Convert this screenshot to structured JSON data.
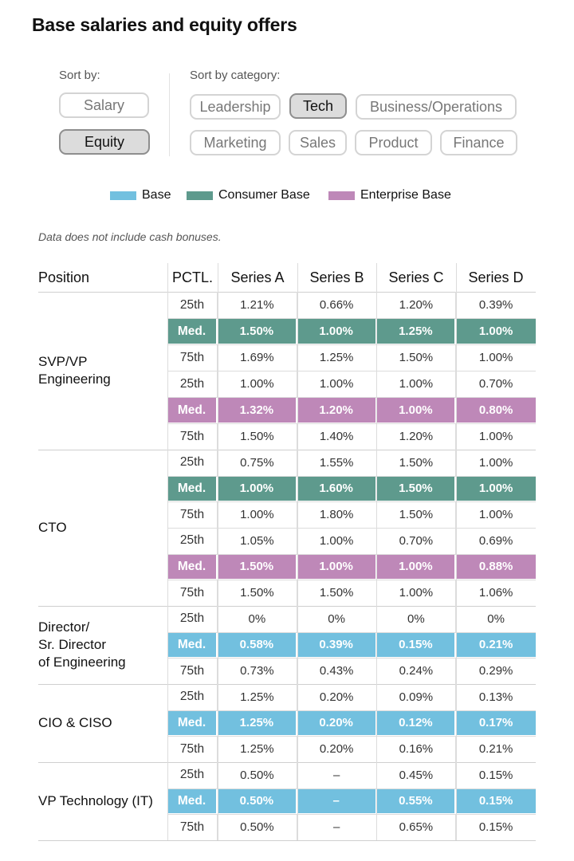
{
  "title": "Base salaries and equity offers",
  "sort_by": {
    "label": "Sort by:",
    "options": [
      {
        "label": "Salary",
        "active": false
      },
      {
        "label": "Equity",
        "active": true
      }
    ]
  },
  "sort_by_category": {
    "label": "Sort by category:",
    "options": [
      {
        "label": "Leadership",
        "active": false
      },
      {
        "label": "Tech",
        "active": true
      },
      {
        "label": "Business/Operations",
        "active": false
      },
      {
        "label": "Marketing",
        "active": false
      },
      {
        "label": "Sales",
        "active": false
      },
      {
        "label": "Product",
        "active": false
      },
      {
        "label": "Finance",
        "active": false
      }
    ]
  },
  "colors": {
    "base": "#72c0df",
    "consumer": "#5e9a8d",
    "enterprise": "#be88b8"
  },
  "note": "Data does not include cash bonuses.",
  "chart_data": {
    "type": "table",
    "legend": [
      {
        "name": "Base",
        "color": "#72c0df"
      },
      {
        "name": "Consumer Base",
        "color": "#5e9a8d"
      },
      {
        "name": "Enterprise Base",
        "color": "#be88b8"
      }
    ],
    "columns": [
      "Position",
      "PCTL.",
      "Series A",
      "Series B",
      "Series C",
      "Series D"
    ],
    "groups": [
      {
        "position": "SVP/VP\nEngineering",
        "rows": [
          {
            "pctl": "25th",
            "values": [
              "1.21%",
              "0.66%",
              "1.20%",
              "0.39%"
            ],
            "highlight": null
          },
          {
            "pctl": "Med.",
            "values": [
              "1.50%",
              "1.00%",
              "1.25%",
              "1.00%"
            ],
            "highlight": "consumer"
          },
          {
            "pctl": "75th",
            "values": [
              "1.69%",
              "1.25%",
              "1.50%",
              "1.00%"
            ],
            "highlight": null
          },
          {
            "pctl": "25th",
            "values": [
              "1.00%",
              "1.00%",
              "1.00%",
              "0.70%"
            ],
            "highlight": null
          },
          {
            "pctl": "Med.",
            "values": [
              "1.32%",
              "1.20%",
              "1.00%",
              "0.80%"
            ],
            "highlight": "enterprise"
          },
          {
            "pctl": "75th",
            "values": [
              "1.50%",
              "1.40%",
              "1.20%",
              "1.00%"
            ],
            "highlight": null
          }
        ]
      },
      {
        "position": "CTO",
        "rows": [
          {
            "pctl": "25th",
            "values": [
              "0.75%",
              "1.55%",
              "1.50%",
              "1.00%"
            ],
            "highlight": null
          },
          {
            "pctl": "Med.",
            "values": [
              "1.00%",
              "1.60%",
              "1.50%",
              "1.00%"
            ],
            "highlight": "consumer"
          },
          {
            "pctl": "75th",
            "values": [
              "1.00%",
              "1.80%",
              "1.50%",
              "1.00%"
            ],
            "highlight": null
          },
          {
            "pctl": "25th",
            "values": [
              "1.05%",
              "1.00%",
              "0.70%",
              "0.69%"
            ],
            "highlight": null
          },
          {
            "pctl": "Med.",
            "values": [
              "1.50%",
              "1.00%",
              "1.00%",
              "0.88%"
            ],
            "highlight": "enterprise"
          },
          {
            "pctl": "75th",
            "values": [
              "1.50%",
              "1.50%",
              "1.00%",
              "1.06%"
            ],
            "highlight": null
          }
        ]
      },
      {
        "position": "Director/\nSr. Director\nof Engineering",
        "rows": [
          {
            "pctl": "25th",
            "values": [
              "0%",
              "0%",
              "0%",
              "0%"
            ],
            "highlight": null
          },
          {
            "pctl": "Med.",
            "values": [
              "0.58%",
              "0.39%",
              "0.15%",
              "0.21%"
            ],
            "highlight": "base"
          },
          {
            "pctl": "75th",
            "values": [
              "0.73%",
              "0.43%",
              "0.24%",
              "0.29%"
            ],
            "highlight": null
          }
        ]
      },
      {
        "position": "CIO & CISO",
        "rows": [
          {
            "pctl": "25th",
            "values": [
              "1.25%",
              "0.20%",
              "0.09%",
              "0.13%"
            ],
            "highlight": null
          },
          {
            "pctl": "Med.",
            "values": [
              "1.25%",
              "0.20%",
              "0.12%",
              "0.17%"
            ],
            "highlight": "base"
          },
          {
            "pctl": "75th",
            "values": [
              "1.25%",
              "0.20%",
              "0.16%",
              "0.21%"
            ],
            "highlight": null
          }
        ]
      },
      {
        "position": "VP Technology (IT)",
        "rows": [
          {
            "pctl": "25th",
            "values": [
              "0.50%",
              "–",
              "0.45%",
              "0.15%"
            ],
            "highlight": null
          },
          {
            "pctl": "Med.",
            "values": [
              "0.50%",
              "–",
              "0.55%",
              "0.15%"
            ],
            "highlight": "base"
          },
          {
            "pctl": "75th",
            "values": [
              "0.50%",
              "–",
              "0.65%",
              "0.15%"
            ],
            "highlight": null
          }
        ]
      }
    ]
  }
}
